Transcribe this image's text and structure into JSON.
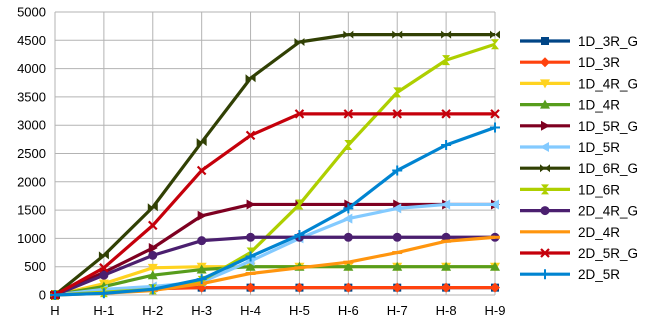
{
  "chart_data": {
    "type": "line",
    "title": "",
    "xlabel": "",
    "ylabel": "",
    "categories": [
      "H",
      "H-1",
      "H-2",
      "H-3",
      "H-4",
      "H-5",
      "H-6",
      "H-7",
      "H-8",
      "H-9"
    ],
    "ylim": [
      0,
      5000
    ],
    "yticks": [
      0,
      500,
      1000,
      1500,
      2000,
      2500,
      3000,
      3500,
      4000,
      4500,
      5000
    ],
    "grid": "horizontal",
    "legend_position": "right",
    "series": [
      {
        "name": "1D_3R_G",
        "color": "#004586",
        "marker": "square",
        "values": [
          0,
          70,
          120,
          130,
          130,
          130,
          130,
          130,
          130,
          130
        ]
      },
      {
        "name": "1D_3R",
        "color": "#ff420e",
        "marker": "diamond",
        "values": [
          0,
          60,
          110,
          130,
          130,
          130,
          130,
          130,
          130,
          130
        ]
      },
      {
        "name": "1D_4R_G",
        "color": "#ffd320",
        "marker": "triangle-down",
        "values": [
          0,
          200,
          480,
          500,
          500,
          500,
          500,
          500,
          500,
          500
        ]
      },
      {
        "name": "1D_4R",
        "color": "#579d1c",
        "marker": "triangle",
        "values": [
          0,
          150,
          350,
          450,
          500,
          500,
          500,
          500,
          500,
          500
        ]
      },
      {
        "name": "1D_5R_G",
        "color": "#7e0021",
        "marker": "triangle-right",
        "values": [
          0,
          400,
          830,
          1400,
          1600,
          1600,
          1600,
          1600,
          1600,
          1600
        ]
      },
      {
        "name": "1D_5R",
        "color": "#83caff",
        "marker": "triangle-left",
        "values": [
          0,
          100,
          150,
          230,
          600,
          1000,
          1350,
          1530,
          1600,
          1600
        ]
      },
      {
        "name": "1D_6R_G",
        "color": "#314004",
        "marker": "bowtie",
        "values": [
          0,
          700,
          1550,
          2700,
          3830,
          4470,
          4600,
          4600,
          4600,
          4600
        ]
      },
      {
        "name": "1D_6R",
        "color": "#aecf00",
        "marker": "hourglass",
        "values": [
          0,
          50,
          100,
          250,
          750,
          1600,
          2650,
          3580,
          4150,
          4430
        ]
      },
      {
        "name": "2D_4R_G",
        "color": "#4b1f6f",
        "marker": "circle",
        "values": [
          0,
          350,
          700,
          960,
          1020,
          1020,
          1020,
          1020,
          1020,
          1020
        ]
      },
      {
        "name": "2D_4R",
        "color": "#ff950e",
        "marker": "dash",
        "values": [
          0,
          30,
          80,
          200,
          380,
          480,
          580,
          750,
          950,
          1020
        ]
      },
      {
        "name": "2D_5R_G",
        "color": "#c5000b",
        "marker": "x",
        "values": [
          0,
          480,
          1230,
          2200,
          2820,
          3200,
          3200,
          3200,
          3200,
          3200
        ]
      },
      {
        "name": "2D_5R",
        "color": "#0084d1",
        "marker": "plus",
        "values": [
          0,
          30,
          100,
          280,
          680,
          1060,
          1530,
          2200,
          2650,
          2960
        ]
      }
    ]
  }
}
